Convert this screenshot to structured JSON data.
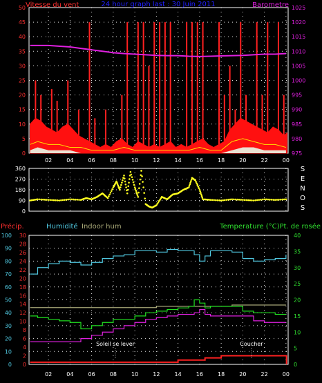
{
  "colors": {
    "background": "#000000",
    "grid": "#ffffff",
    "axis_white": "#ffffff",
    "wind": "#ff1010",
    "gust": "#ff2020",
    "wind_avg": "#ffe000",
    "wind_light": "#e8f8e8",
    "barometer": "#e020e0",
    "direction": "#ffff20",
    "precip": "#ff2020",
    "humidity": "#50c8e0",
    "indoor_hum": "#a8a878",
    "temperature": "#20e020",
    "dew_point": "#e020e0",
    "title": "#2020ff",
    "left_axis_red": "#ff3030",
    "left_axis_cyan": "#50c8e0",
    "right_axis_green": "#30e030",
    "right_axis_magenta": "#e020e0",
    "annotation": "#ffffff"
  },
  "chart_data": [
    {
      "type": "line",
      "panel": "wind-barometer",
      "title": "24 hour graph last : 30 Juin 2011",
      "ylabel_left": "Vitesse du vent",
      "ylabel_right": "Barometre",
      "x_tick_labels": [
        "02",
        "04",
        "06",
        "08",
        "10",
        "12",
        "14",
        "16",
        "18",
        "20",
        "22",
        "00"
      ],
      "x_ticks_hours": [
        2,
        4,
        6,
        8,
        10,
        12,
        14,
        16,
        18,
        20,
        22,
        24
      ],
      "xlim_hours": [
        0.2,
        24.2
      ],
      "ylim_left": [
        0,
        50
      ],
      "yticks_left": [
        0,
        5,
        10,
        15,
        20,
        25,
        30,
        35,
        40,
        45,
        50
      ],
      "ylim_right": [
        975,
        1025
      ],
      "yticks_right": [
        975,
        980,
        985,
        990,
        995,
        1000,
        1005,
        1010,
        1015,
        1020,
        1025
      ],
      "series": [
        {
          "role": "barometer",
          "axis": "right",
          "x": [
            0.3,
            2,
            4,
            5,
            6,
            7,
            8,
            9,
            10,
            11,
            12,
            13,
            14,
            15,
            16,
            17,
            18,
            19,
            20,
            21,
            22,
            23,
            24
          ],
          "values": [
            1012,
            1012,
            1011.5,
            1011,
            1010.5,
            1010,
            1009.5,
            1009.2,
            1009,
            1008.8,
            1008.6,
            1008.5,
            1008.5,
            1008.3,
            1008.2,
            1008.3,
            1008.4,
            1008.5,
            1008.6,
            1008.8,
            1009,
            1009,
            1009.2
          ]
        },
        {
          "role": "wind",
          "axis": "left",
          "x": [
            0.3,
            0.8,
            1.3,
            1.8,
            2.3,
            2.8,
            3.3,
            3.8,
            4.3,
            4.8,
            5.3,
            5.8,
            6.3,
            6.8,
            7.3,
            7.8,
            8.3,
            8.8,
            9.3,
            9.8,
            10.3,
            10.8,
            11.3,
            11.8,
            12.3,
            12.8,
            13.3,
            13.8,
            14.3,
            14.8,
            15.3,
            15.8,
            16.3,
            16.8,
            17.3,
            17.8,
            18.3,
            18.8,
            19.3,
            19.8,
            20.3,
            20.8,
            21.3,
            21.8,
            22.3,
            22.8,
            23.3,
            23.8,
            24.1
          ],
          "values": [
            10,
            12,
            11,
            9,
            8,
            7,
            9,
            10,
            8,
            6,
            5,
            4,
            3,
            2,
            3,
            2,
            4,
            5,
            3,
            2,
            4,
            3,
            2,
            3,
            2,
            3,
            4,
            2,
            3,
            2,
            3,
            4,
            5,
            3,
            2,
            3,
            4,
            8,
            10,
            12,
            11,
            10,
            9,
            8,
            7,
            9,
            8,
            6,
            7
          ]
        },
        {
          "role": "gust",
          "axis": "left",
          "x": [
            0.8,
            1.3,
            2.3,
            2.8,
            3.8,
            4.8,
            5.8,
            6.3,
            7.3,
            8.8,
            9.3,
            10.3,
            10.8,
            11.3,
            11.8,
            12.3,
            12.8,
            13.3,
            14.8,
            15.3,
            15.8,
            16.3,
            17.8,
            18.3,
            18.8,
            19.3,
            19.8,
            20.3,
            21.3,
            21.8,
            22.3,
            23.3,
            23.8
          ],
          "values": [
            25,
            20,
            22,
            18,
            25,
            15,
            45,
            12,
            15,
            20,
            45,
            45,
            45,
            30,
            45,
            45,
            45,
            45,
            45,
            45,
            45,
            45,
            45,
            20,
            30,
            15,
            45,
            20,
            45,
            20,
            45,
            45,
            20
          ]
        },
        {
          "role": "wind_avg",
          "axis": "left",
          "x": [
            0.3,
            1,
            2,
            3,
            4,
            5,
            6,
            7,
            8,
            9,
            10,
            11,
            12,
            13,
            14,
            15,
            16,
            17,
            18,
            19,
            20,
            21,
            22,
            23,
            24
          ],
          "values": [
            3,
            4,
            3,
            3,
            2,
            2,
            1,
            1,
            1,
            2,
            1,
            1,
            1,
            1,
            1,
            1,
            2,
            1,
            1,
            4,
            5,
            4,
            3,
            3,
            2
          ]
        },
        {
          "role": "wind_light",
          "axis": "left",
          "x": [
            0.3,
            1,
            2,
            3,
            4,
            5,
            6,
            7,
            8,
            9,
            10,
            11,
            12,
            13,
            14,
            15,
            16,
            17,
            18,
            19,
            20,
            21,
            22,
            23,
            24
          ],
          "values": [
            1,
            2,
            1,
            1,
            1,
            0,
            0,
            0,
            0,
            0,
            0,
            0,
            0,
            0,
            0,
            0,
            0,
            0,
            0,
            1,
            2,
            2,
            1,
            1,
            1
          ]
        }
      ]
    },
    {
      "type": "scatter",
      "panel": "wind-direction",
      "ylabel_right_letters": [
        "S",
        "E",
        "N",
        "O",
        "S"
      ],
      "ylim": [
        0,
        360
      ],
      "yticks": [
        0,
        90,
        180,
        270,
        360
      ],
      "xlim_hours": [
        0.2,
        24.2
      ],
      "series": [
        {
          "role": "direction",
          "x": [
            0.3,
            1,
            2,
            3,
            4,
            5,
            5.5,
            6,
            6.5,
            7,
            7.5,
            8,
            8.3,
            8.6,
            9,
            9.3,
            9.6,
            10,
            10.3,
            10.6,
            11,
            11.3,
            11.6,
            12,
            12.5,
            13,
            13.5,
            14,
            14.5,
            15,
            15.3,
            15.6,
            16,
            16.3,
            17,
            18,
            19,
            20,
            21,
            22,
            23,
            24
          ],
          "values": [
            90,
            100,
            95,
            90,
            100,
            95,
            110,
            100,
            120,
            150,
            110,
            200,
            250,
            180,
            300,
            150,
            330,
            200,
            120,
            340,
            60,
            40,
            30,
            50,
            120,
            100,
            140,
            150,
            180,
            200,
            280,
            260,
            180,
            100,
            95,
            90,
            100,
            95,
            90,
            100,
            95,
            100
          ]
        }
      ]
    },
    {
      "type": "line",
      "panel": "temp-humidity",
      "labels": {
        "precip": "Précip.",
        "humidity": "Humidité",
        "indoor_hum": "Indoor hum",
        "temp_dew": "Temperature (°C)Pt. de rosée"
      },
      "xlim_hours": [
        0.2,
        24.2
      ],
      "x_tick_labels": [
        "02",
        "04",
        "06",
        "08",
        "10",
        "12",
        "14",
        "16",
        "18",
        "20",
        "22",
        "00"
      ],
      "ylim_humidity": [
        0,
        100
      ],
      "yticks_humidity": [
        0,
        10,
        20,
        30,
        40,
        50,
        60,
        70,
        80,
        90,
        100
      ],
      "ylim_precip": [
        0,
        30
      ],
      "yticks_precip": [
        0,
        2,
        4,
        6,
        8,
        10,
        12,
        14,
        16,
        18,
        20,
        22,
        24,
        26,
        28,
        30
      ],
      "ylim_temp": [
        0,
        40
      ],
      "yticks_temp": [
        0,
        5,
        10,
        15,
        20,
        25,
        30,
        35,
        40
      ],
      "annotations": [
        {
          "label": "Soleil se lever",
          "x_hour": 8.2
        },
        {
          "label": "Coucher",
          "x_hour": 20.8
        }
      ],
      "series": [
        {
          "role": "humidity",
          "axis": "humidity",
          "x": [
            0.3,
            1,
            2,
            3,
            4,
            5,
            6,
            7,
            8,
            9,
            10,
            11,
            12,
            13,
            14,
            15,
            15.5,
            16,
            16.5,
            17,
            18,
            19,
            20,
            21,
            22,
            23,
            24
          ],
          "values": [
            70,
            75,
            78,
            80,
            79,
            77,
            79,
            82,
            84,
            85,
            88,
            88,
            87,
            89,
            88,
            88,
            85,
            80,
            84,
            88,
            88,
            87,
            82,
            80,
            81,
            82,
            85
          ]
        },
        {
          "role": "indoor_hum",
          "axis": "humidity",
          "x": [
            0.3,
            4,
            8,
            12,
            16,
            18,
            19,
            20,
            22,
            24
          ],
          "values": [
            44,
            44,
            44,
            45,
            45,
            45,
            46,
            46,
            46,
            46
          ]
        },
        {
          "role": "temperature",
          "axis": "temp",
          "x": [
            0.3,
            1,
            2,
            3,
            4,
            5,
            6,
            7,
            8,
            9,
            10,
            11,
            12,
            13,
            14,
            15,
            15.5,
            16,
            16.5,
            17,
            18,
            19,
            20,
            21,
            22,
            23,
            24
          ],
          "values": [
            15,
            14.5,
            14,
            13.5,
            13,
            11,
            12,
            13,
            14,
            14,
            15,
            16,
            16.5,
            17,
            17.5,
            18,
            20,
            19,
            17.5,
            18,
            18,
            18,
            16.5,
            16,
            16,
            15.5,
            15.5
          ]
        },
        {
          "role": "dew_point",
          "axis": "temp",
          "x": [
            0.3,
            1,
            2,
            3,
            4,
            5,
            6,
            7,
            8,
            9,
            10,
            11,
            12,
            13,
            14,
            15,
            15.5,
            16,
            16.5,
            17,
            18,
            19,
            20,
            21,
            22,
            23,
            24
          ],
          "values": [
            7,
            7,
            7,
            7,
            7,
            8,
            9,
            10,
            11,
            12,
            13,
            14,
            14.5,
            15,
            15.5,
            15.5,
            16,
            17,
            15.5,
            15,
            15,
            15,
            15,
            13.5,
            13,
            13,
            13
          ]
        },
        {
          "role": "precip",
          "axis": "precip",
          "x": [
            0.3,
            13.9,
            14,
            16,
            16.5,
            18,
            24,
            24.05
          ],
          "values": [
            0.5,
            0.5,
            1,
            1,
            1.5,
            2,
            2,
            0
          ]
        }
      ]
    }
  ]
}
